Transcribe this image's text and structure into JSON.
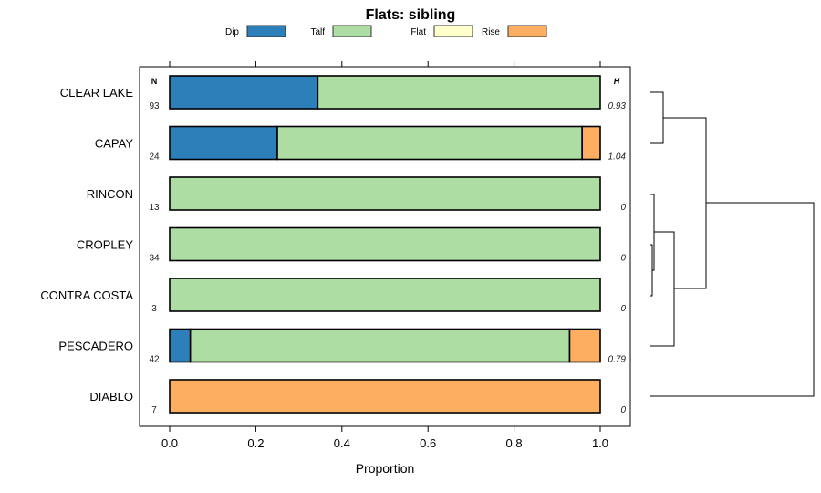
{
  "chart_data": {
    "type": "bar",
    "orientation": "horizontal-stacked-proportion",
    "title": "Flats: sibling",
    "xlabel": "Proportion",
    "ylabel": "",
    "xlim": [
      0,
      1
    ],
    "x_ticks": [
      "0.0",
      "0.2",
      "0.4",
      "0.6",
      "0.8",
      "1.0"
    ],
    "x_tick_values": [
      0,
      0.2,
      0.4,
      0.6,
      0.8,
      1.0
    ],
    "legend": {
      "placement": "top",
      "entries": [
        "Dip",
        "Talf",
        "Flat",
        "Rise"
      ]
    },
    "colors": {
      "Dip": "#2c7fb8",
      "Talf": "#addda3",
      "Flat": "#ffffcc",
      "Rise": "#fdae61"
    },
    "n_header": "N",
    "h_header": "H",
    "categories": [
      "CLEAR LAKE",
      "CAPAY",
      "RINCON",
      "CROPLEY",
      "CONTRA COSTA",
      "PESCADERO",
      "DIABLO"
    ],
    "n": [
      "93",
      "24",
      "13",
      "34",
      "3",
      "42",
      "7"
    ],
    "h": [
      "0.93",
      "1.04",
      "0",
      "0",
      "0",
      "0.79",
      "0"
    ],
    "series": [
      {
        "name": "Dip",
        "values": [
          0.344,
          0.25,
          0,
          0,
          0,
          0.048,
          0
        ]
      },
      {
        "name": "Talf",
        "values": [
          0.656,
          0.708,
          1,
          1,
          1,
          0.881,
          0
        ]
      },
      {
        "name": "Flat",
        "values": [
          0,
          0,
          0,
          0,
          0,
          0,
          0
        ]
      },
      {
        "name": "Rise",
        "values": [
          0,
          0.042,
          0,
          0,
          0,
          0.071,
          1
        ]
      }
    ],
    "dendrogram": "((CLEAR LAKE,CAPAY),((RINCON,(CROPLEY,CONTRA COSTA)),PESCADERO)),DIABLO"
  }
}
